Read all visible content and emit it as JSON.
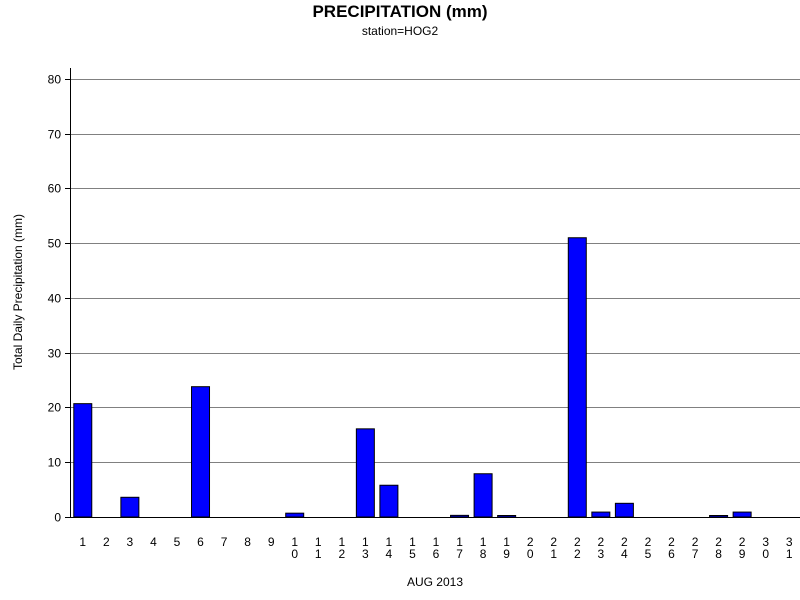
{
  "chart_data": {
    "type": "bar",
    "title": "PRECIPITATION (mm)",
    "subtitle": "station=HOG2",
    "xlabel": "AUG 2013",
    "ylabel": "Total Daily Precipitation (mm)",
    "ylim": [
      0,
      82
    ],
    "yticks": [
      0,
      10,
      20,
      30,
      40,
      50,
      60,
      70,
      80
    ],
    "grid": true,
    "categories": [
      "1",
      "2",
      "3",
      "4",
      "5",
      "6",
      "7",
      "8",
      "9",
      "10",
      "11",
      "12",
      "13",
      "14",
      "15",
      "16",
      "17",
      "18",
      "19",
      "20",
      "21",
      "22",
      "23",
      "24",
      "25",
      "26",
      "27",
      "28",
      "29",
      "30",
      "31"
    ],
    "values": [
      20.7,
      0,
      3.6,
      0,
      0,
      23.8,
      0,
      0,
      0,
      0.7,
      0,
      0,
      16.1,
      5.8,
      0,
      0,
      0.3,
      7.9,
      0.1,
      0,
      0,
      51.0,
      0.9,
      2.5,
      0,
      0,
      0,
      0.1,
      0.9,
      0,
      0
    ],
    "bar_color": "#0000ff",
    "bar_stroke": "#000000",
    "grid_color": "#808080"
  }
}
